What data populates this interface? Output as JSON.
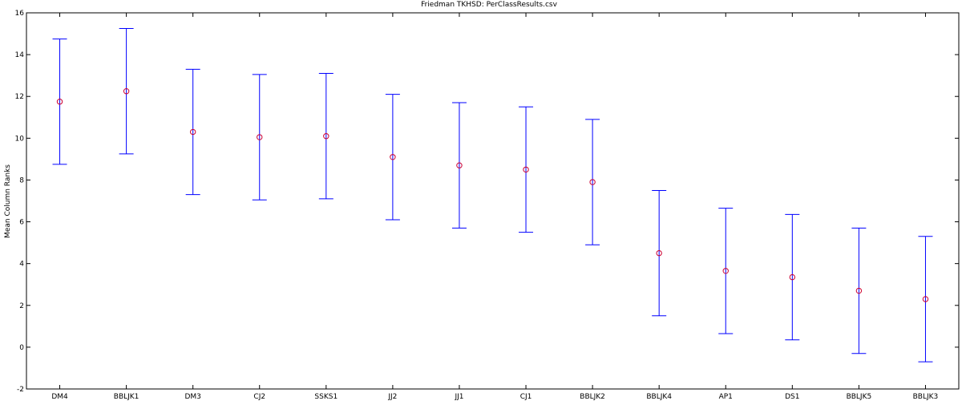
{
  "chart_data": {
    "type": "scatter",
    "title": "Friedman TKHSD: PerClassResults.csv",
    "xlabel": "",
    "ylabel": "Mean Column Ranks",
    "ylim": [
      -2,
      16
    ],
    "yticks": [
      -2,
      0,
      2,
      4,
      6,
      8,
      10,
      12,
      14,
      16
    ],
    "grid": false,
    "categories": [
      "DM4",
      "BBLJK1",
      "DM3",
      "CJ2",
      "SSKS1",
      "JJ2",
      "JJ1",
      "CJ1",
      "BBLJK2",
      "BBLJK4",
      "AP1",
      "DS1",
      "BBLJK5",
      "BBLJK3"
    ],
    "series": [
      {
        "mean": [
          11.75,
          12.25,
          10.3,
          10.05,
          10.1,
          9.1,
          8.7,
          8.5,
          7.9,
          4.5,
          3.65,
          3.35,
          2.7,
          2.3
        ],
        "lower": [
          8.75,
          9.25,
          7.3,
          7.05,
          7.1,
          6.1,
          5.7,
          5.5,
          4.9,
          1.5,
          0.65,
          0.35,
          -0.3,
          -0.7
        ],
        "upper": [
          14.75,
          15.25,
          13.3,
          13.05,
          13.1,
          12.1,
          11.7,
          11.5,
          10.9,
          7.5,
          6.65,
          6.35,
          5.7,
          5.3
        ]
      }
    ],
    "colors": {
      "errorbar": "#0000ff",
      "marker": "#cc0033",
      "axis": "#000000"
    }
  }
}
